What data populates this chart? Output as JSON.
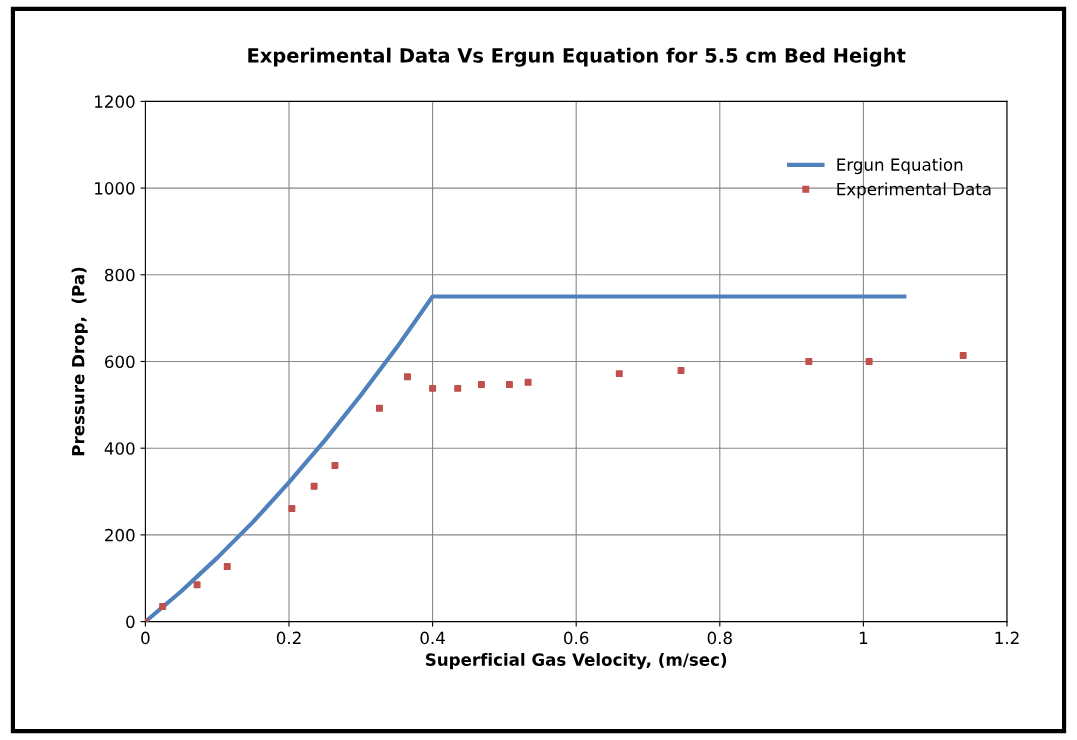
{
  "chart_data": {
    "type": "line",
    "title": "Experimental Data Vs Ergun Equation for 5.5 cm Bed Height",
    "xlabel": "Superficial Gas Velocity, (m/sec)",
    "ylabel": "Pressure Drop,  (Pa)",
    "series": [
      {
        "name": "Ergun Equation",
        "color": "#4f81bd",
        "marker": "none",
        "x": [
          0,
          0.05,
          0.1,
          0.15,
          0.2,
          0.25,
          0.3,
          0.35,
          0.4,
          1.057
        ],
        "values": [
          0,
          70,
          147,
          230,
          321,
          418,
          522,
          632,
          750,
          750
        ]
      },
      {
        "name": "Experimental Data",
        "type": "scatter",
        "color": "#c0504d",
        "marker": "square",
        "x": [
          0,
          0.024,
          0.072,
          0.114,
          0.204,
          0.235,
          0.264,
          0.326,
          0.365,
          0.4,
          0.435,
          0.468,
          0.507,
          0.533,
          0.66,
          0.746,
          0.924,
          1.008,
          1.139
        ],
        "values": [
          0,
          35,
          85,
          127,
          261,
          312,
          360,
          492,
          565,
          538,
          538,
          547,
          547,
          552,
          572,
          579,
          600,
          600,
          614
        ]
      }
    ],
    "xlim": [
      0,
      1.2
    ],
    "xticks": [
      0,
      0.2,
      0.4,
      0.6,
      0.8,
      1,
      1.2
    ],
    "ylim": [
      0,
      1200
    ],
    "yticks": [
      0,
      200,
      400,
      600,
      800,
      1000,
      1200
    ],
    "grid": true,
    "legend": "top right"
  }
}
